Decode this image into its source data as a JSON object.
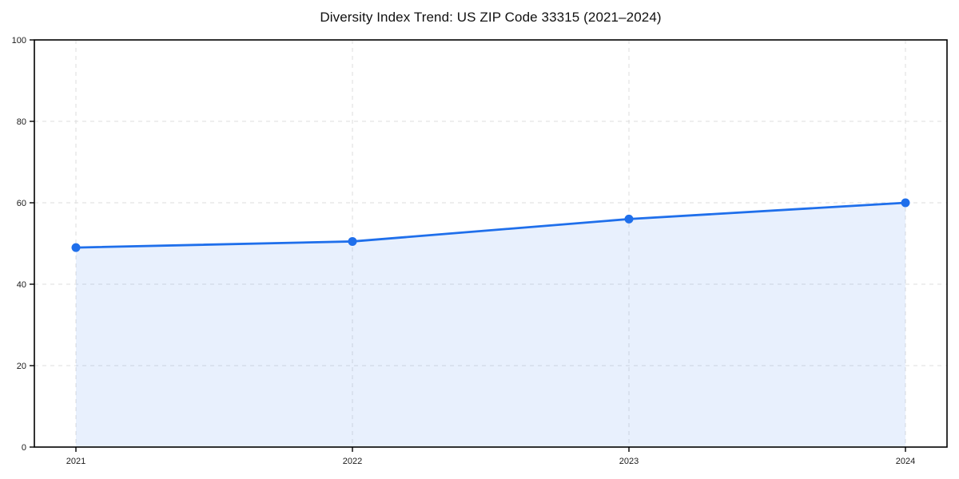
{
  "chart_data": {
    "type": "area",
    "title": "Diversity Index Trend: US ZIP Code 33315 (2021–2024)",
    "x": [
      "2021",
      "2022",
      "2023",
      "2024"
    ],
    "series": [
      {
        "name": "Diversity Index",
        "values": [
          49,
          50.5,
          56,
          60
        ]
      }
    ],
    "xlabel": "",
    "ylabel": "",
    "ylim": [
      0,
      100
    ],
    "yticks": [
      0,
      20,
      40,
      60,
      80,
      100
    ],
    "grid": "dashed",
    "legend_position": "none",
    "colors": {
      "line": "#1f6feb",
      "marker": "#1f6feb",
      "fill": "#1f6feb",
      "fill_opacity": "0.10",
      "grid": "#dedede",
      "spine": "#000000",
      "tick_label": "#1a1a1a",
      "background": "#ffffff"
    }
  }
}
